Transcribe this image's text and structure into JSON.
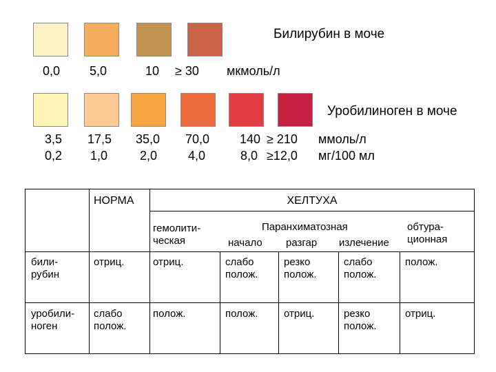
{
  "bilirubin": {
    "title": "Билирубин в моче",
    "swatches": [
      "#fdf1c6",
      "#f5ad5d",
      "#c39150",
      "#c86345"
    ],
    "values": [
      "0,0",
      "5,0",
      "10",
      "≥ 30"
    ],
    "unit": "мкмоль/л"
  },
  "urobilinogen": {
    "title": "Уробилиноген в моче",
    "swatches": [
      "#fff3b5",
      "#fdca95",
      "#f7a540",
      "#ec6a3c",
      "#e33c45",
      "#c62040"
    ],
    "values_mmol": [
      "3,5",
      "17,5",
      "35,0",
      "70,0",
      "140",
      "≥ 210"
    ],
    "values_mg": [
      "0,2",
      "1,0",
      "2,0",
      "4,0",
      "8,0",
      "≥12,0"
    ],
    "unit_mmol": "ммоль/л",
    "unit_mg": "мг/100 мл"
  },
  "table": {
    "norm": "НОРМА",
    "jaundice": "ХЕЛТУХА",
    "hemolytic": [
      "гемолити-",
      "ческая"
    ],
    "parenchymal": "Паранхиматозная",
    "stages": [
      "начало",
      "разгар",
      "излечение"
    ],
    "obstructive": [
      "обтура-",
      "ционная"
    ],
    "rows": [
      {
        "label": [
          "били-",
          "рубин"
        ],
        "norm": [
          "отриц."
        ],
        "hemolytic": [
          "отриц."
        ],
        "start": [
          "слабо",
          "полож."
        ],
        "peak": [
          "резко",
          "полож."
        ],
        "recovery": [
          "слабо",
          "полож."
        ],
        "obstructive": [
          "полож."
        ]
      },
      {
        "label": [
          "уробили-",
          "ноген"
        ],
        "norm": [
          "слабо",
          "полож."
        ],
        "hemolytic": [
          "полож."
        ],
        "start": [
          "полож."
        ],
        "peak": [
          "отриц."
        ],
        "recovery": [
          "резко",
          "полож."
        ],
        "obstructive": [
          "отриц."
        ]
      }
    ]
  }
}
